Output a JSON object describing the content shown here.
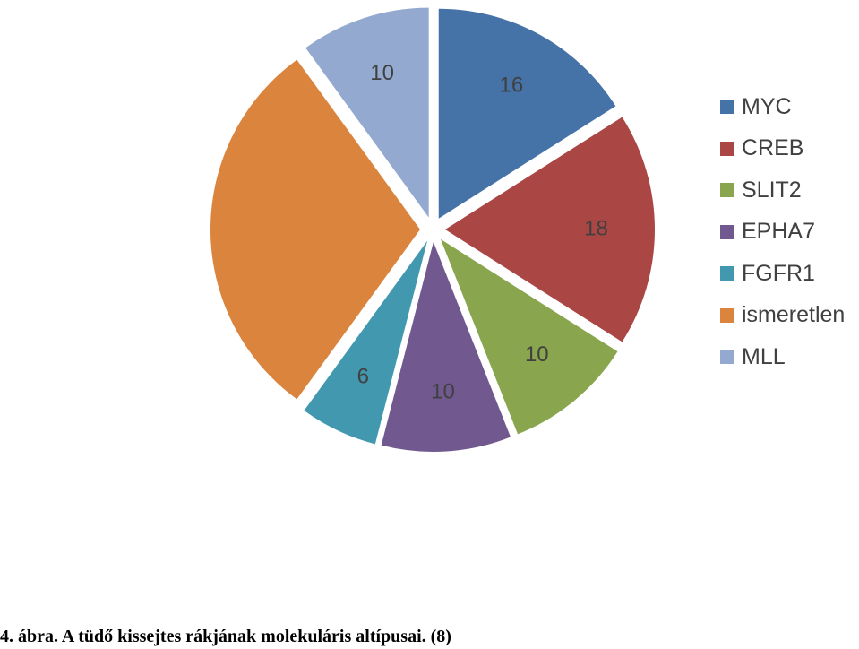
{
  "chart_data": {
    "type": "pie",
    "categories": [
      "MYC",
      "CREB",
      "SLIT2",
      "EPHA7",
      "FGFR1",
      "ismeretlen",
      "MLL"
    ],
    "values": [
      16,
      18,
      10,
      10,
      6,
      30,
      10
    ],
    "data_labels": [
      "16",
      "18",
      "10",
      "10",
      "6",
      "",
      "10"
    ],
    "colors": [
      "#4572A7",
      "#AA4643",
      "#89A54E",
      "#71588F",
      "#4198AF",
      "#DB843D",
      "#93A9CF"
    ],
    "exploded": true,
    "start_angle": "12 o'clock, clockwise",
    "legend_position": "right"
  },
  "caption": "4. ábra. A tüdő kissejtes rákjának molekuláris altípusai. (8)"
}
